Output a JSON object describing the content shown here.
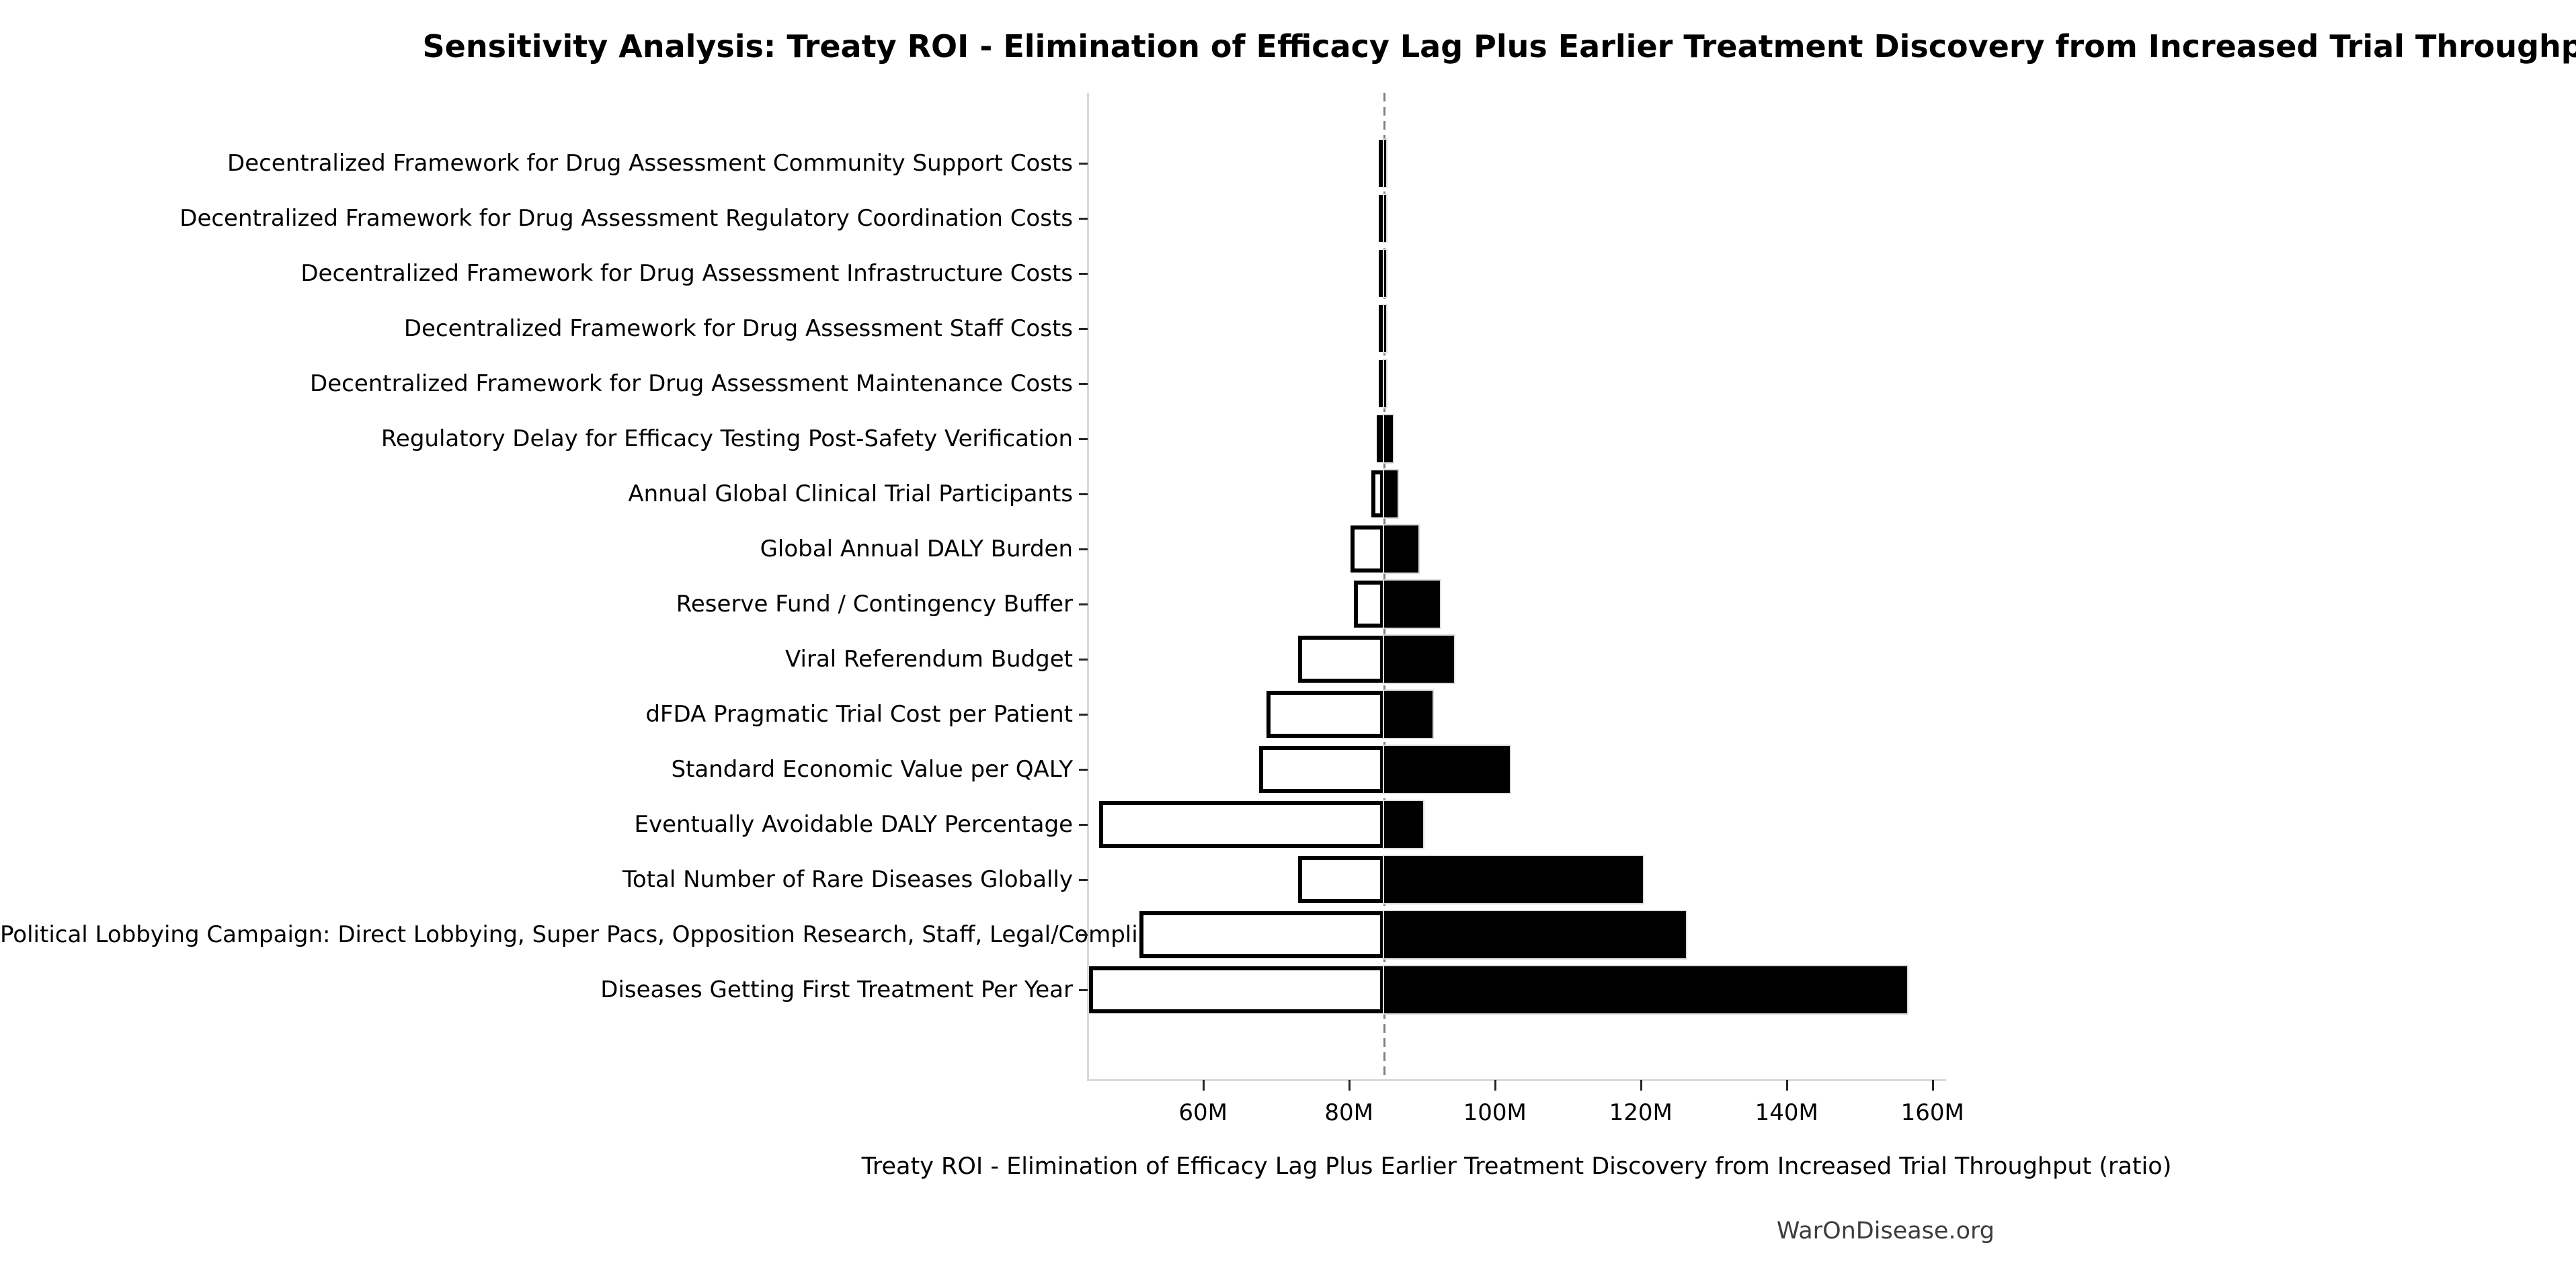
{
  "title": "Sensitivity Analysis: Treaty ROI - Elimination of Efficacy Lag Plus Earlier Treatment Discovery from Increased Trial Throughput",
  "watermark": "WarOnDisease.org",
  "chart_data": {
    "type": "bar",
    "subtype": "tornado",
    "orientation": "horizontal",
    "title": "Sensitivity Analysis: Treaty ROI - Elimination of Efficacy Lag Plus Earlier Treatment Discovery from Increased Trial Throughput",
    "xlabel": "Treaty ROI - Elimination of Efficacy Lag Plus Earlier Treatment Discovery from Increased Trial Throughput (ratio)",
    "value_unit": "M",
    "baseline": 84.8,
    "xlim": [
      44.2,
      161.8
    ],
    "xticks": [
      60,
      80,
      100,
      120,
      140,
      160
    ],
    "xtick_labels": [
      "60M",
      "80M",
      "100M",
      "120M",
      "140M",
      "160M"
    ],
    "grid": false,
    "legend": false,
    "categories": [
      "Decentralized Framework for Drug Assessment Community Support Costs",
      "Decentralized Framework for Drug Assessment Regulatory Coordination Costs",
      "Decentralized Framework for Drug Assessment Infrastructure Costs",
      "Decentralized Framework for Drug Assessment Staff Costs",
      "Decentralized Framework for Drug Assessment Maintenance Costs",
      "Regulatory Delay for Efficacy Testing Post-Safety Verification",
      "Annual Global Clinical Trial Participants",
      "Global Annual DALY Burden",
      "Reserve Fund / Contingency Buffer",
      "Viral Referendum Budget",
      "dFDA Pragmatic Trial Cost per Patient",
      "Standard Economic Value per QALY",
      "Eventually Avoidable DALY Percentage",
      "Total Number of Rare Diseases Globally",
      "Political Lobbying Campaign: Direct Lobbying, Super Pacs, Opposition Research, Staff, Legal/Compliance",
      "Diseases Getting First Treatment Per Year"
    ],
    "series": [
      {
        "name": "low_value",
        "values": [
          84.6,
          84.6,
          84.6,
          84.6,
          84.6,
          83.8,
          83.1,
          80.2,
          80.7,
          73.0,
          68.7,
          67.7,
          45.7,
          73.0,
          51.3,
          44.4
        ]
      },
      {
        "name": "high_value",
        "values": [
          85.0,
          85.0,
          85.0,
          85.0,
          85.1,
          86.0,
          86.7,
          89.5,
          92.5,
          94.4,
          91.5,
          102.1,
          90.2,
          120.3,
          126.2,
          156.5
        ]
      }
    ],
    "colors": {
      "low_fill": "#ffffff",
      "low_edge": "#000000",
      "high_fill": "#000000",
      "high_edge": "#dcdcdc",
      "baseline_line": "#7f7f7f",
      "spine": "#d9d9d9",
      "tick": "#262626",
      "text": "#000000",
      "watermark_text": "#3d3d3d"
    }
  }
}
